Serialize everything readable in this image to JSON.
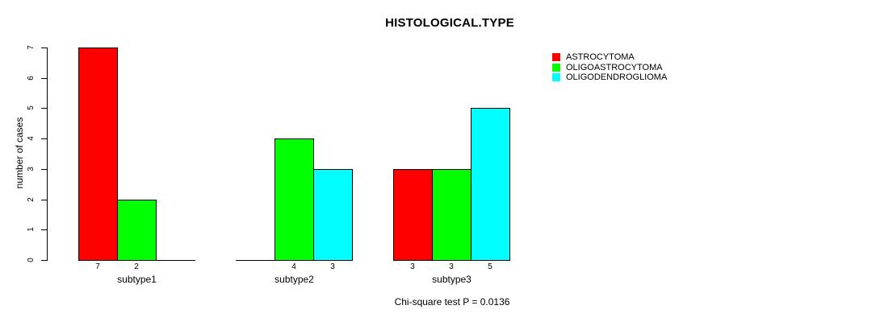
{
  "chart_data": {
    "type": "bar",
    "title": "HISTOLOGICAL.TYPE",
    "ylabel": "number of cases",
    "caption": "Chi-square test P = 0.0136",
    "ylim": [
      0,
      7
    ],
    "yticks": [
      0,
      1,
      2,
      3,
      4,
      5,
      6,
      7
    ],
    "categories": [
      "subtype1",
      "subtype2",
      "subtype3"
    ],
    "series": [
      {
        "name": "ASTROCYTOMA",
        "color": "#ff0000",
        "values": [
          7,
          0,
          3
        ]
      },
      {
        "name": "OLIGOASTROCYTOMA",
        "color": "#00ff00",
        "values": [
          2,
          4,
          3
        ]
      },
      {
        "name": "OLIGODENDROGLIOMA",
        "color": "#00ffff",
        "values": [
          0,
          3,
          5
        ]
      }
    ],
    "bar_value_labels_shown_for_nonzero_only": true,
    "legend_position": "top-right",
    "grid": false,
    "axis_color": "#000000",
    "text_color": "#000000",
    "background": "#ffffff"
  }
}
